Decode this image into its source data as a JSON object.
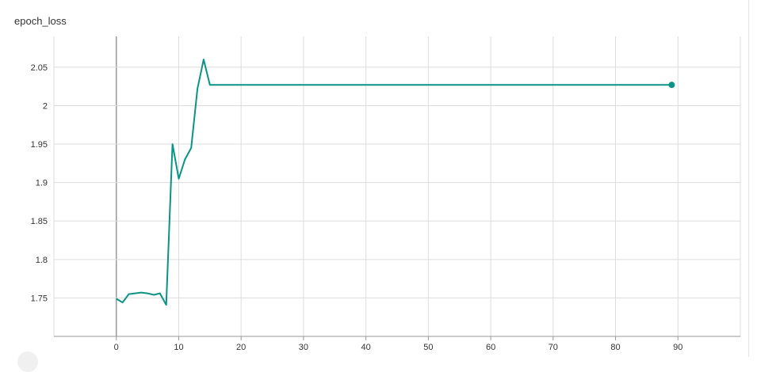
{
  "chart_data": {
    "type": "line",
    "title": "epoch_loss",
    "xlabel": "",
    "ylabel": "",
    "xlim": [
      -10,
      100
    ],
    "ylim": [
      1.7,
      2.09
    ],
    "x_ticks": [
      0,
      10,
      20,
      30,
      40,
      50,
      60,
      70,
      80,
      90
    ],
    "y_ticks": [
      1.75,
      1.8,
      1.85,
      1.9,
      1.95,
      2,
      2.05
    ],
    "x_tick_labels": [
      "0",
      "10",
      "20",
      "30",
      "40",
      "50",
      "60",
      "70",
      "80",
      "90"
    ],
    "y_tick_labels": [
      "1.75",
      "1.8",
      "1.85",
      "1.9",
      "1.95",
      "2",
      "2.05"
    ],
    "grid": true,
    "series": [
      {
        "name": "epoch_loss",
        "color": "#0a9486",
        "x": [
          0,
          1,
          2,
          3,
          4,
          5,
          6,
          7,
          8,
          9,
          10,
          11,
          12,
          13,
          14,
          15,
          16,
          89
        ],
        "y": [
          1.749,
          1.744,
          1.755,
          1.756,
          1.757,
          1.756,
          1.754,
          1.756,
          1.741,
          1.95,
          1.905,
          1.93,
          1.945,
          2.022,
          2.06,
          2.027,
          2.027,
          2.027
        ]
      }
    ]
  }
}
